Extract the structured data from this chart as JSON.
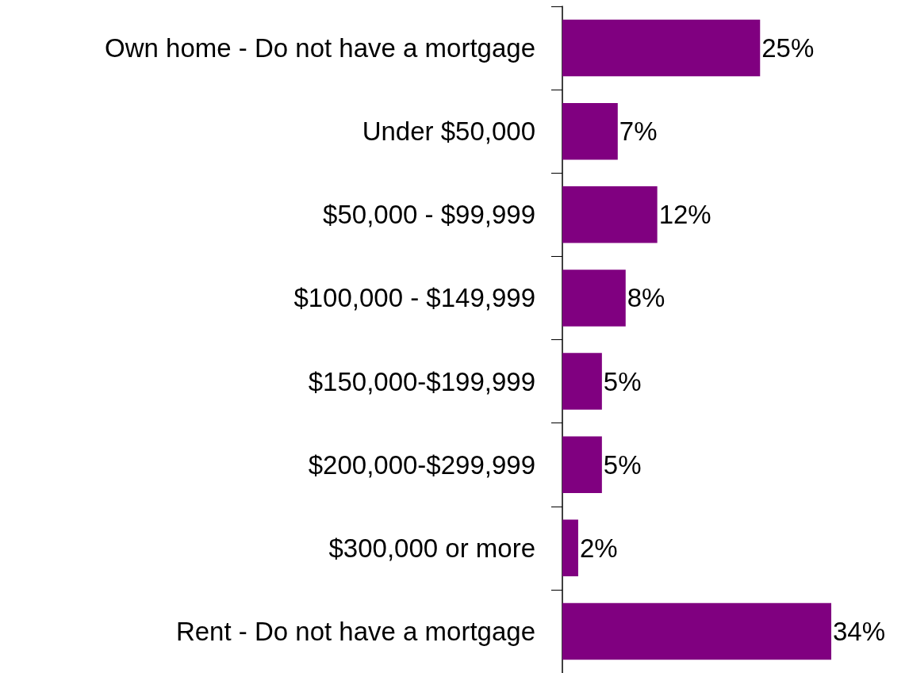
{
  "chart_data": {
    "type": "bar",
    "orientation": "horizontal",
    "categories": [
      "Own home - Do not have a mortgage",
      "Under $50,000",
      "$50,000 - $99,999",
      "$100,000 - $149,999",
      "$150,000-$199,999",
      "$200,000-$299,999",
      "$300,000 or more",
      "Rent - Do not have a mortgage"
    ],
    "values": [
      25,
      7,
      12,
      8,
      5,
      5,
      2,
      34
    ],
    "value_labels": [
      "25%",
      "7%",
      "12%",
      "8%",
      "5%",
      "5%",
      "2%",
      "34%"
    ],
    "color": "#800080",
    "grid": false
  }
}
